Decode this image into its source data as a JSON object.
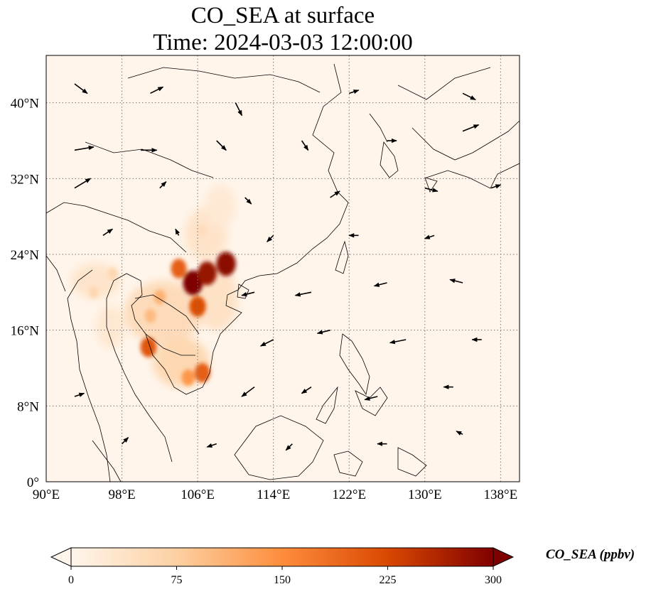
{
  "title": "CO_SEA at surface",
  "subtitle": "Time: 2024-03-03 12:00:00",
  "colorbar": {
    "label": "CO_SEA (ppbv)",
    "ticks": [
      "0",
      "75",
      "150",
      "225",
      "300"
    ],
    "colors": [
      "#fff5eb",
      "#fdd0a2",
      "#fd8d3c",
      "#d94801",
      "#7f0000"
    ]
  },
  "map": {
    "extent": {
      "lon": [
        90,
        140
      ],
      "lat": [
        0,
        45
      ]
    },
    "lon_ticks": [
      "90°E",
      "98°E",
      "106°E",
      "114°E",
      "122°E",
      "130°E",
      "138°E"
    ],
    "lat_ticks": [
      "0°",
      "8°N",
      "16°N",
      "24°N",
      "32°N",
      "40°N"
    ],
    "background_color": "#fff5eb",
    "gridlines": "dotted"
  },
  "chart_data": {
    "type": "heatmap",
    "variable": "CO_SEA",
    "units": "ppbv",
    "color_range": [
      0,
      300
    ],
    "hotspots": [
      {
        "lon": 105.5,
        "lat": 21.0,
        "value": 300
      },
      {
        "lon": 107.0,
        "lat": 22.0,
        "value": 280
      },
      {
        "lon": 109.0,
        "lat": 23.0,
        "value": 290
      },
      {
        "lon": 106.0,
        "lat": 18.5,
        "value": 220
      },
      {
        "lon": 104.0,
        "lat": 22.5,
        "value": 200
      },
      {
        "lon": 106.5,
        "lat": 11.5,
        "value": 200
      },
      {
        "lon": 105.0,
        "lat": 11.0,
        "value": 140
      },
      {
        "lon": 100.8,
        "lat": 14.2,
        "value": 210
      },
      {
        "lon": 102.0,
        "lat": 19.5,
        "value": 110
      },
      {
        "lon": 101.0,
        "lat": 17.5,
        "value": 100
      },
      {
        "lon": 95.0,
        "lat": 20.0,
        "value": 60
      },
      {
        "lon": 97.0,
        "lat": 22.0,
        "value": 60
      },
      {
        "lon": 106.5,
        "lat": 26.5,
        "value": 50
      }
    ],
    "wind_vectors": [
      {
        "lon": 93,
        "lat": 42,
        "u": 4,
        "v": -3
      },
      {
        "lon": 101,
        "lat": 41,
        "u": 4,
        "v": 2
      },
      {
        "lon": 110,
        "lat": 40,
        "u": 2,
        "v": -4
      },
      {
        "lon": 122,
        "lat": 41,
        "u": 3,
        "v": 1
      },
      {
        "lon": 134,
        "lat": 41,
        "u": 4,
        "v": -2
      },
      {
        "lon": 93,
        "lat": 35,
        "u": 6,
        "v": 1
      },
      {
        "lon": 100,
        "lat": 35,
        "u": 5,
        "v": 0
      },
      {
        "lon": 108,
        "lat": 36,
        "u": 3,
        "v": -3
      },
      {
        "lon": 117,
        "lat": 36,
        "u": 2,
        "v": -3
      },
      {
        "lon": 126,
        "lat": 36,
        "u": 3,
        "v": 0
      },
      {
        "lon": 134,
        "lat": 37,
        "u": 5,
        "v": 2
      },
      {
        "lon": 93,
        "lat": 31,
        "u": 5,
        "v": 3
      },
      {
        "lon": 102,
        "lat": 31,
        "u": 2,
        "v": 2
      },
      {
        "lon": 111,
        "lat": 30,
        "u": 2,
        "v": -2
      },
      {
        "lon": 120,
        "lat": 30,
        "u": 3,
        "v": 2
      },
      {
        "lon": 130,
        "lat": 31,
        "u": 4,
        "v": -1
      },
      {
        "lon": 137,
        "lat": 31,
        "u": 3,
        "v": 1
      },
      {
        "lon": 96,
        "lat": 26,
        "u": 3,
        "v": 2
      },
      {
        "lon": 104,
        "lat": 26,
        "u": -1,
        "v": 2
      },
      {
        "lon": 114,
        "lat": 26,
        "u": -2,
        "v": -2
      },
      {
        "lon": 123,
        "lat": 26,
        "u": -3,
        "v": 0
      },
      {
        "lon": 131,
        "lat": 26,
        "u": -3,
        "v": -1
      },
      {
        "lon": 112,
        "lat": 20,
        "u": -4,
        "v": -1
      },
      {
        "lon": 118,
        "lat": 20,
        "u": -5,
        "v": -1
      },
      {
        "lon": 126,
        "lat": 21,
        "u": -4,
        "v": -1
      },
      {
        "lon": 134,
        "lat": 21,
        "u": -4,
        "v": 1
      },
      {
        "lon": 114,
        "lat": 15,
        "u": -4,
        "v": -2
      },
      {
        "lon": 120,
        "lat": 16,
        "u": -4,
        "v": -1
      },
      {
        "lon": 128,
        "lat": 15,
        "u": -5,
        "v": -1
      },
      {
        "lon": 136,
        "lat": 15,
        "u": -3,
        "v": 0
      },
      {
        "lon": 112,
        "lat": 10,
        "u": -4,
        "v": -3
      },
      {
        "lon": 118,
        "lat": 10,
        "u": -3,
        "v": -2
      },
      {
        "lon": 125,
        "lat": 9,
        "u": -4,
        "v": -1
      },
      {
        "lon": 133,
        "lat": 10,
        "u": -3,
        "v": 0
      },
      {
        "lon": 93,
        "lat": 9,
        "u": 3,
        "v": 1
      },
      {
        "lon": 98,
        "lat": 4,
        "u": 2,
        "v": 2
      },
      {
        "lon": 108,
        "lat": 4,
        "u": -3,
        "v": -1
      },
      {
        "lon": 116,
        "lat": 4,
        "u": -2,
        "v": -2
      },
      {
        "lon": 126,
        "lat": 4,
        "u": -3,
        "v": 0
      },
      {
        "lon": 134,
        "lat": 5,
        "u": -2,
        "v": 1
      }
    ]
  }
}
